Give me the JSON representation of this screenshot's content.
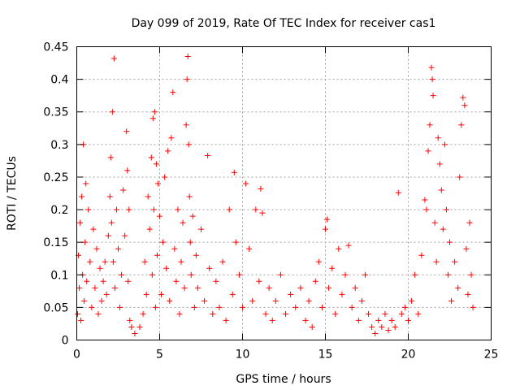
{
  "chart_data": {
    "type": "scatter",
    "title": "Day 099 of 2019, Rate Of TEC Index for receiver cas1",
    "xlabel": "GPS time / hours",
    "ylabel": "ROTI / TECUs",
    "xlim": [
      0,
      25
    ],
    "ylim": [
      0,
      0.45
    ],
    "x_ticks": [
      0,
      5,
      10,
      15,
      20,
      25
    ],
    "x_tick_labels": [
      "0",
      "5",
      "10",
      "15",
      "20",
      "25"
    ],
    "y_ticks": [
      0,
      0.05,
      0.1,
      0.15,
      0.2,
      0.25,
      0.3,
      0.35,
      0.4,
      0.45
    ],
    "y_tick_labels": [
      "0",
      "0.05",
      "0.1",
      "0.15",
      "0.2",
      "0.25",
      "0.3",
      "0.35",
      "0.4",
      "0.45"
    ],
    "grid": true,
    "marker": "+",
    "color": "#ff0000",
    "series": [
      {
        "name": "ROTI",
        "points": [
          [
            0.05,
            0.04
          ],
          [
            0.1,
            0.13
          ],
          [
            0.15,
            0.08
          ],
          [
            0.2,
            0.18
          ],
          [
            0.25,
            0.03
          ],
          [
            0.3,
            0.22
          ],
          [
            0.35,
            0.1
          ],
          [
            0.4,
            0.3
          ],
          [
            0.45,
            0.06
          ],
          [
            0.5,
            0.15
          ],
          [
            0.55,
            0.24
          ],
          [
            0.6,
            0.09
          ],
          [
            0.7,
            0.2
          ],
          [
            0.8,
            0.12
          ],
          [
            0.9,
            0.05
          ],
          [
            1.0,
            0.17
          ],
          [
            1.1,
            0.08
          ],
          [
            1.2,
            0.14
          ],
          [
            1.3,
            0.04
          ],
          [
            1.4,
            0.11
          ],
          [
            1.5,
            0.06
          ],
          [
            1.6,
            0.09
          ],
          [
            1.7,
            0.12
          ],
          [
            1.8,
            0.07
          ],
          [
            1.9,
            0.16
          ],
          [
            2.0,
            0.22
          ],
          [
            2.05,
            0.28
          ],
          [
            2.1,
            0.18
          ],
          [
            2.15,
            0.35
          ],
          [
            2.2,
            0.12
          ],
          [
            2.25,
            0.432
          ],
          [
            2.3,
            0.08
          ],
          [
            2.4,
            0.2
          ],
          [
            2.5,
            0.14
          ],
          [
            2.6,
            0.05
          ],
          [
            2.7,
            0.1
          ],
          [
            2.8,
            0.23
          ],
          [
            2.9,
            0.16
          ],
          [
            3.0,
            0.32
          ],
          [
            3.05,
            0.26
          ],
          [
            3.1,
            0.09
          ],
          [
            3.15,
            0.2
          ],
          [
            3.2,
            0.03
          ],
          [
            3.3,
            0.02
          ],
          [
            3.5,
            0.01
          ],
          [
            3.8,
            0.02
          ],
          [
            4.0,
            0.04
          ],
          [
            4.1,
            0.12
          ],
          [
            4.2,
            0.07
          ],
          [
            4.3,
            0.22
          ],
          [
            4.4,
            0.17
          ],
          [
            4.5,
            0.28
          ],
          [
            4.55,
            0.1
          ],
          [
            4.6,
            0.34
          ],
          [
            4.65,
            0.2
          ],
          [
            4.7,
            0.35
          ],
          [
            4.75,
            0.05
          ],
          [
            4.8,
            0.27
          ],
          [
            4.85,
            0.13
          ],
          [
            4.9,
            0.24
          ],
          [
            5.0,
            0.19
          ],
          [
            5.1,
            0.07
          ],
          [
            5.2,
            0.15
          ],
          [
            5.3,
            0.25
          ],
          [
            5.4,
            0.11
          ],
          [
            5.5,
            0.29
          ],
          [
            5.6,
            0.06
          ],
          [
            5.7,
            0.31
          ],
          [
            5.8,
            0.38
          ],
          [
            5.9,
            0.14
          ],
          [
            6.0,
            0.09
          ],
          [
            6.1,
            0.2
          ],
          [
            6.2,
            0.04
          ],
          [
            6.3,
            0.12
          ],
          [
            6.4,
            0.18
          ],
          [
            6.5,
            0.08
          ],
          [
            6.6,
            0.33
          ],
          [
            6.65,
            0.4
          ],
          [
            6.7,
            0.435
          ],
          [
            6.75,
            0.3
          ],
          [
            6.8,
            0.22
          ],
          [
            6.85,
            0.15
          ],
          [
            6.9,
            0.1
          ],
          [
            7.0,
            0.19
          ],
          [
            7.1,
            0.05
          ],
          [
            7.2,
            0.13
          ],
          [
            7.3,
            0.08
          ],
          [
            7.5,
            0.17
          ],
          [
            7.7,
            0.06
          ],
          [
            7.9,
            0.283
          ],
          [
            8.0,
            0.11
          ],
          [
            8.2,
            0.04
          ],
          [
            8.4,
            0.09
          ],
          [
            8.6,
            0.05
          ],
          [
            8.8,
            0.12
          ],
          [
            9.0,
            0.03
          ],
          [
            9.2,
            0.2
          ],
          [
            9.4,
            0.07
          ],
          [
            9.5,
            0.257
          ],
          [
            9.6,
            0.15
          ],
          [
            9.8,
            0.1
          ],
          [
            10.0,
            0.05
          ],
          [
            10.2,
            0.24
          ],
          [
            10.4,
            0.14
          ],
          [
            10.6,
            0.06
          ],
          [
            10.8,
            0.2
          ],
          [
            11.0,
            0.09
          ],
          [
            11.1,
            0.232
          ],
          [
            11.2,
            0.195
          ],
          [
            11.4,
            0.04
          ],
          [
            11.6,
            0.08
          ],
          [
            11.8,
            0.03
          ],
          [
            12.0,
            0.06
          ],
          [
            12.3,
            0.1
          ],
          [
            12.6,
            0.04
          ],
          [
            12.9,
            0.07
          ],
          [
            13.2,
            0.05
          ],
          [
            13.5,
            0.08
          ],
          [
            13.8,
            0.03
          ],
          [
            14.0,
            0.06
          ],
          [
            14.2,
            0.02
          ],
          [
            14.4,
            0.09
          ],
          [
            14.6,
            0.12
          ],
          [
            14.8,
            0.05
          ],
          [
            15.0,
            0.17
          ],
          [
            15.1,
            0.185
          ],
          [
            15.2,
            0.08
          ],
          [
            15.4,
            0.11
          ],
          [
            15.6,
            0.04
          ],
          [
            15.8,
            0.14
          ],
          [
            16.0,
            0.07
          ],
          [
            16.2,
            0.1
          ],
          [
            16.4,
            0.145
          ],
          [
            16.6,
            0.05
          ],
          [
            16.8,
            0.08
          ],
          [
            17.0,
            0.03
          ],
          [
            17.2,
            0.06
          ],
          [
            17.4,
            0.1
          ],
          [
            17.6,
            0.04
          ],
          [
            17.8,
            0.02
          ],
          [
            18.0,
            0.01
          ],
          [
            18.2,
            0.03
          ],
          [
            18.4,
            0.02
          ],
          [
            18.6,
            0.04
          ],
          [
            18.8,
            0.015
          ],
          [
            19.0,
            0.03
          ],
          [
            19.2,
            0.02
          ],
          [
            19.4,
            0.226
          ],
          [
            19.6,
            0.04
          ],
          [
            19.8,
            0.05
          ],
          [
            20.0,
            0.03
          ],
          [
            20.2,
            0.06
          ],
          [
            20.4,
            0.1
          ],
          [
            20.6,
            0.04
          ],
          [
            20.8,
            0.13
          ],
          [
            21.0,
            0.215
          ],
          [
            21.1,
            0.2
          ],
          [
            21.2,
            0.29
          ],
          [
            21.3,
            0.33
          ],
          [
            21.4,
            0.418
          ],
          [
            21.45,
            0.4
          ],
          [
            21.5,
            0.375
          ],
          [
            21.6,
            0.18
          ],
          [
            21.7,
            0.12
          ],
          [
            21.8,
            0.31
          ],
          [
            21.9,
            0.27
          ],
          [
            22.0,
            0.23
          ],
          [
            22.1,
            0.17
          ],
          [
            22.2,
            0.3
          ],
          [
            22.3,
            0.2
          ],
          [
            22.4,
            0.1
          ],
          [
            22.5,
            0.15
          ],
          [
            22.6,
            0.06
          ],
          [
            22.8,
            0.12
          ],
          [
            23.0,
            0.08
          ],
          [
            23.1,
            0.25
          ],
          [
            23.2,
            0.33
          ],
          [
            23.3,
            0.372
          ],
          [
            23.4,
            0.36
          ],
          [
            23.5,
            0.14
          ],
          [
            23.6,
            0.07
          ],
          [
            23.7,
            0.18
          ],
          [
            23.8,
            0.1
          ],
          [
            23.9,
            0.05
          ]
        ]
      }
    ]
  }
}
